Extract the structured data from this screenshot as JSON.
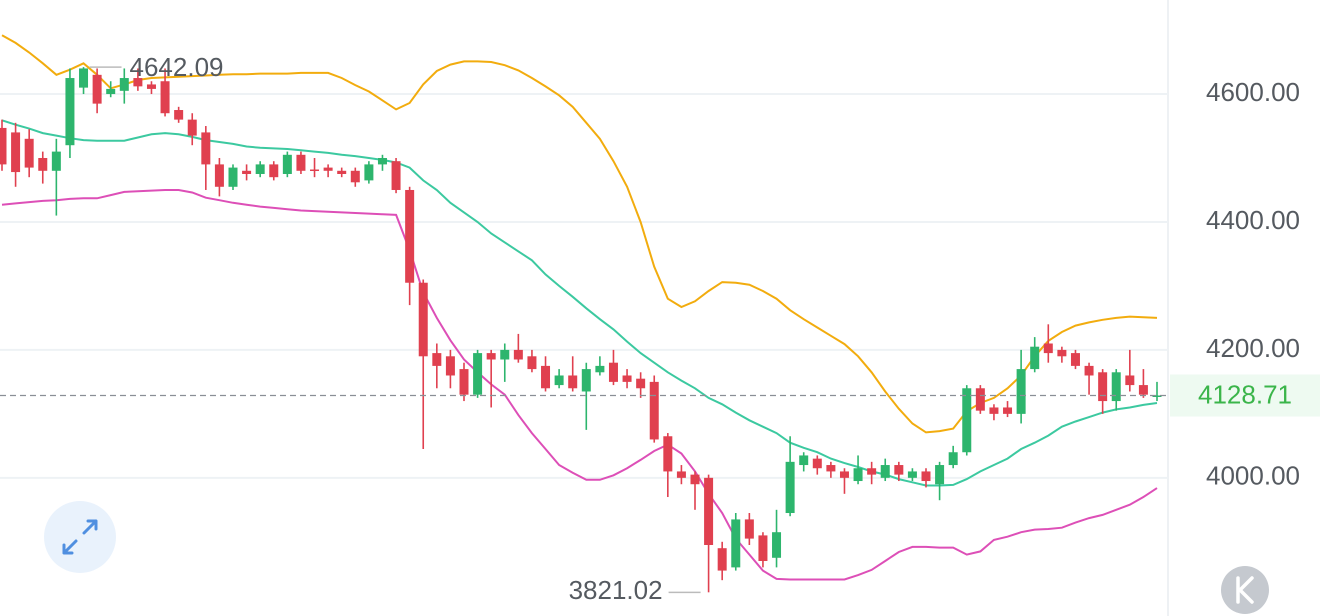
{
  "chart_data": {
    "type": "candlestick",
    "ylim": [
      3784,
      4747
    ],
    "yticks": [
      {
        "value": 4000,
        "label": "4000.00"
      },
      {
        "value": 4200,
        "label": "4200.00"
      },
      {
        "value": 4400,
        "label": "4400.00"
      },
      {
        "value": 4600,
        "label": "4600.00"
      }
    ],
    "grid": true,
    "up_color": "#2db56d",
    "down_color": "#e0404f",
    "open": [
      4547,
      4540,
      4530,
      4500,
      4480,
      4520,
      4610,
      4630,
      4600,
      4605,
      4625,
      4615,
      4620,
      4575,
      4560,
      4540,
      4490,
      4455,
      4480,
      4475,
      4490,
      4475,
      4505,
      4482,
      4485,
      4480,
      4480,
      4465,
      4490,
      4495,
      4450,
      4305,
      4195,
      4190,
      4170,
      4130,
      4195,
      4185,
      4200,
      4190,
      4175,
      4145,
      4160,
      4135,
      4165,
      4180,
      4160,
      4155,
      4150,
      4065,
      4010,
      4005,
      4000,
      3890,
      3860,
      3935,
      3910,
      3875,
      3945,
      4020,
      4030,
      4020,
      4010,
      3995,
      4015,
      4000,
      4020,
      4000,
      4010,
      3990,
      4020,
      4040,
      4140,
      4110,
      4110,
      4100,
      4170,
      4210,
      4200,
      4195,
      4175,
      4165,
      4120,
      4160,
      4145,
      4128
    ],
    "high": [
      4560,
      4555,
      4545,
      4510,
      4530,
      4640,
      4642.09,
      4640,
      4620,
      4640,
      4640,
      4620,
      4640,
      4580,
      4570,
      4550,
      4500,
      4490,
      4490,
      4495,
      4495,
      4510,
      4510,
      4500,
      4490,
      4485,
      4485,
      4495,
      4505,
      4500,
      4455,
      4310,
      4210,
      4200,
      4180,
      4200,
      4200,
      4210,
      4225,
      4200,
      4190,
      4170,
      4190,
      4180,
      4190,
      4200,
      4170,
      4165,
      4160,
      4070,
      4020,
      4010,
      4005,
      3900,
      3945,
      3945,
      3915,
      3950,
      4065,
      4040,
      4035,
      4025,
      4015,
      4035,
      4025,
      4030,
      4025,
      4015,
      4015,
      4025,
      4050,
      4145,
      4145,
      4115,
      4120,
      4200,
      4220,
      4240,
      4205,
      4200,
      4180,
      4170,
      4170,
      4200,
      4170,
      4150
    ],
    "low": [
      4480,
      4455,
      4470,
      4460,
      4410,
      4500,
      4600,
      4570,
      4595,
      4585,
      4605,
      4600,
      4565,
      4555,
      4520,
      4450,
      4440,
      4450,
      4465,
      4470,
      4465,
      4470,
      4475,
      4470,
      4470,
      4470,
      4455,
      4460,
      4480,
      4445,
      4270,
      4045,
      4140,
      4140,
      4120,
      4125,
      4110,
      4150,
      4180,
      4165,
      4135,
      4140,
      4135,
      4075,
      4160,
      4145,
      4140,
      4125,
      4055,
      3970,
      3990,
      3950,
      3821.02,
      3840,
      3855,
      3895,
      3860,
      3860,
      3940,
      4010,
      4005,
      4000,
      3975,
      3990,
      3990,
      3995,
      3995,
      3995,
      3985,
      3965,
      4015,
      4035,
      4100,
      4090,
      4095,
      4085,
      4165,
      4180,
      4180,
      4170,
      4130,
      4100,
      4105,
      4135,
      4125,
      4120
    ],
    "close": [
      4490,
      4478,
      4485,
      4480,
      4510,
      4625,
      4640,
      4585,
      4608,
      4625,
      4612,
      4608,
      4570,
      4560,
      4535,
      4490,
      4455,
      4485,
      4475,
      4490,
      4470,
      4505,
      4480,
      4480,
      4480,
      4475,
      4462,
      4490,
      4500,
      4450,
      4305,
      4190,
      4175,
      4160,
      4130,
      4195,
      4185,
      4200,
      4185,
      4170,
      4140,
      4160,
      4140,
      4170,
      4175,
      4150,
      4150,
      4140,
      4060,
      4010,
      4000,
      3990,
      3895,
      3855,
      3935,
      3905,
      3870,
      3915,
      4025,
      4035,
      4015,
      4010,
      4000,
      4015,
      4005,
      4020,
      4005,
      4010,
      3995,
      4020,
      4040,
      4140,
      4105,
      4100,
      4100,
      4170,
      4205,
      4195,
      4190,
      4175,
      4160,
      4120,
      4165,
      4145,
      4130,
      4128.71
    ],
    "bands": [
      {
        "color": "#f2ac0e",
        "values": [
          4692,
          4680,
          4665,
          4648,
          4630,
          4638,
          4648,
          4630,
          4609,
          4615,
          4622,
          4625,
          4626,
          4627,
          4628,
          4629,
          4630,
          4631,
          4631,
          4632,
          4632,
          4632,
          4633,
          4633,
          4633,
          4625,
          4614,
          4604,
          4590,
          4576,
          4586,
          4615,
          4636,
          4646,
          4651,
          4651,
          4650,
          4645,
          4637,
          4625,
          4612,
          4598,
          4580,
          4555,
          4530,
          4495,
          4455,
          4400,
          4330,
          4280,
          4267,
          4276,
          4292,
          4306,
          4305,
          4302,
          4292,
          4280,
          4262,
          4248,
          4235,
          4222,
          4209,
          4190,
          4165,
          4135,
          4108,
          4085,
          4071,
          4073,
          4077,
          4104,
          4117,
          4125,
          4140,
          4160,
          4190,
          4214,
          4228,
          4238,
          4243,
          4247,
          4250,
          4252,
          4251,
          4250
        ]
      },
      {
        "color": "#3cc9a0",
        "values": [
          4559,
          4552,
          4546,
          4539,
          4535,
          4531,
          4528,
          4527,
          4527,
          4527,
          4532,
          4537,
          4539,
          4537,
          4533,
          4528,
          4525,
          4522,
          4518,
          4516,
          4515,
          4514,
          4512,
          4510,
          4508,
          4505,
          4503,
          4500,
          4497,
          4493,
          4485,
          4465,
          4450,
          4430,
          4415,
          4400,
          4382,
          4368,
          4354,
          4340,
          4318,
          4300,
          4283,
          4265,
          4248,
          4232,
          4213,
          4195,
          4180,
          4165,
          4152,
          4140,
          4125,
          4115,
          4102,
          4090,
          4080,
          4070,
          4055,
          4047,
          4040,
          4030,
          4023,
          4017,
          4010,
          4005,
          3998,
          3993,
          3988,
          3988,
          3989,
          3998,
          4010,
          4020,
          4030,
          4045,
          4055,
          4066,
          4080,
          4088,
          4095,
          4102,
          4107,
          4110,
          4114,
          4117
        ]
      },
      {
        "color": "#dd4fb7",
        "values": [
          4427,
          4429,
          4431,
          4433,
          4434,
          4436,
          4437,
          4437,
          4442,
          4447,
          4448,
          4449,
          4450,
          4450,
          4446,
          4438,
          4434,
          4430,
          4427,
          4424,
          4422,
          4420,
          4418,
          4417,
          4416,
          4415,
          4414,
          4413,
          4412,
          4411,
          4356,
          4290,
          4250,
          4215,
          4185,
          4165,
          4146,
          4130,
          4098,
          4070,
          4045,
          4020,
          4008,
          3997,
          3997,
          4004,
          4015,
          4028,
          4042,
          4052,
          4038,
          4010,
          3975,
          3945,
          3905,
          3880,
          3855,
          3842,
          3841,
          3841,
          3841,
          3841,
          3841,
          3848,
          3856,
          3870,
          3884,
          3892,
          3892,
          3891,
          3891,
          3880,
          3885,
          3903,
          3908,
          3915,
          3919,
          3920,
          3922,
          3930,
          3937,
          3942,
          3950,
          3958,
          3970,
          3984
        ]
      }
    ]
  }
}
